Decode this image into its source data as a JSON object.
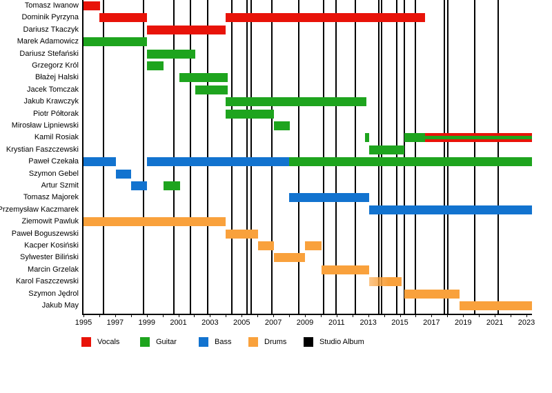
{
  "chart_data": {
    "type": "timeline-gantt",
    "title": "",
    "x_axis": {
      "min": 1995,
      "max": 2023.35,
      "minor_tick_every_years": 1,
      "tick_labels": [
        "1995",
        "1997",
        "1999",
        "2001",
        "2003",
        "2005",
        "2007",
        "2009",
        "2011",
        "2013",
        "2015",
        "2017",
        "2019",
        "2021",
        "2023"
      ]
    },
    "colors": {
      "vocals": "#e81309",
      "guitar": "#1ea41e",
      "bass": "#1273cf",
      "drums": "#f9a13c",
      "album": "#000000",
      "background": "#ffffff"
    },
    "legend": [
      {
        "label": "Vocals",
        "color": "#e81309"
      },
      {
        "label": "Guitar",
        "color": "#1ea41e"
      },
      {
        "label": "Bass",
        "color": "#1273cf"
      },
      {
        "label": "Drums",
        "color": "#f9a13c"
      },
      {
        "label": "Studio Album",
        "color": "#000000"
      }
    ],
    "albums_years": [
      1996.27,
      1998.81,
      2000.7,
      2001.76,
      2002.83,
      2004.37,
      2005.32,
      2005.62,
      2006.9,
      2008.59,
      2010.19,
      2010.96,
      2012.2,
      2013.67,
      2013.85,
      2014.8,
      2015.29,
      2016.0,
      2017.8,
      2018.01,
      2019.75,
      2021.2
    ],
    "members": [
      {
        "name": "Tomasz Iwanow",
        "bars": [
          {
            "role": "vocals",
            "start": 1995.0,
            "end": 1996.05
          }
        ]
      },
      {
        "name": "Dominik Pyrzyna",
        "bars": [
          {
            "role": "vocals",
            "start": 1996.0,
            "end": 1999.0
          },
          {
            "role": "vocals",
            "start": 2004.0,
            "end": 2016.6
          }
        ]
      },
      {
        "name": "Dariusz Tkaczyk",
        "bars": [
          {
            "role": "vocals",
            "start": 1999.0,
            "end": 2004.0
          }
        ]
      },
      {
        "name": "Marek Adamowicz",
        "bars": [
          {
            "role": "guitar",
            "start": 1995.0,
            "end": 1999.0
          }
        ]
      },
      {
        "name": "Dariusz Stefański",
        "bars": [
          {
            "role": "guitar",
            "start": 1999.0,
            "end": 2002.05
          }
        ]
      },
      {
        "name": "Grzegorz Król",
        "bars": [
          {
            "role": "guitar",
            "start": 1999.0,
            "end": 2000.05
          }
        ]
      },
      {
        "name": "Błażej Halski",
        "bars": [
          {
            "role": "guitar",
            "start": 2001.05,
            "end": 2004.1
          }
        ]
      },
      {
        "name": "Jacek Tomczak",
        "bars": [
          {
            "role": "guitar",
            "start": 2002.05,
            "end": 2004.1
          }
        ]
      },
      {
        "name": "Jakub Krawczyk",
        "bars": [
          {
            "role": "guitar",
            "start": 2004.0,
            "end": 2012.9
          }
        ]
      },
      {
        "name": "Piotr Półtorak",
        "bars": [
          {
            "role": "guitar",
            "start": 2004.0,
            "end": 2007.05
          }
        ]
      },
      {
        "name": "Mirosław Lipniewski",
        "bars": [
          {
            "role": "guitar",
            "start": 2007.05,
            "end": 2008.05
          }
        ]
      },
      {
        "name": "Kamil Rosiak",
        "bars": [
          {
            "role": "guitar",
            "start": 2012.8,
            "end": 2013.05
          },
          {
            "role": "guitar",
            "start": 2015.28,
            "end": 2016.6
          },
          {
            "role": "vocals+guitar",
            "start": 2016.6,
            "end": 2023.35
          }
        ]
      },
      {
        "name": "Krystian Faszczewski",
        "bars": [
          {
            "role": "guitar",
            "start": 2013.05,
            "end": 2015.28
          }
        ]
      },
      {
        "name": "Paweł Czekała",
        "bars": [
          {
            "role": "bass",
            "start": 1995.0,
            "end": 1997.05
          },
          {
            "role": "bass",
            "start": 1999.0,
            "end": 2008.0
          },
          {
            "role": "guitar",
            "start": 2008.0,
            "end": 2023.35
          }
        ]
      },
      {
        "name": "Szymon Gebel",
        "bars": [
          {
            "role": "bass",
            "start": 1997.05,
            "end": 1998.0
          }
        ]
      },
      {
        "name": "Artur Szmit",
        "bars": [
          {
            "role": "bass",
            "start": 1998.0,
            "end": 1999.0
          },
          {
            "role": "guitar",
            "start": 2000.05,
            "end": 2001.1
          }
        ]
      },
      {
        "name": "Tomasz Majorek",
        "bars": [
          {
            "role": "bass",
            "start": 2008.0,
            "end": 2013.05
          }
        ]
      },
      {
        "name": "Przemysław Kaczmarek",
        "bars": [
          {
            "role": "bass",
            "start": 2013.05,
            "end": 2023.35
          }
        ]
      },
      {
        "name": "Ziemowit Pawluk",
        "bars": [
          {
            "role": "drums",
            "start": 1995.0,
            "end": 2004.0
          }
        ]
      },
      {
        "name": "Paweł Boguszewski",
        "bars": [
          {
            "role": "drums",
            "start": 2004.0,
            "end": 2006.05
          }
        ]
      },
      {
        "name": "Kacper Kosiński",
        "bars": [
          {
            "role": "drums",
            "start": 2006.05,
            "end": 2007.05
          },
          {
            "role": "drums",
            "start": 2009.0,
            "end": 2010.05
          }
        ]
      },
      {
        "name": "Sylwester Biliński",
        "bars": [
          {
            "role": "drums",
            "start": 2007.05,
            "end": 2009.0
          }
        ]
      },
      {
        "name": "Marcin Grzelak",
        "bars": [
          {
            "role": "drums",
            "start": 2010.05,
            "end": 2013.05
          }
        ]
      },
      {
        "name": "Karol Faszczewski",
        "bars": [
          {
            "role": "drums",
            "start": 2013.05,
            "end": 2015.1,
            "fade_in": true
          }
        ]
      },
      {
        "name": "Szymon Jędrol",
        "bars": [
          {
            "role": "drums",
            "start": 2015.28,
            "end": 2018.78
          }
        ]
      },
      {
        "name": "Jakub May",
        "bars": [
          {
            "role": "drums",
            "start": 2018.78,
            "end": 2023.35
          }
        ]
      }
    ]
  }
}
